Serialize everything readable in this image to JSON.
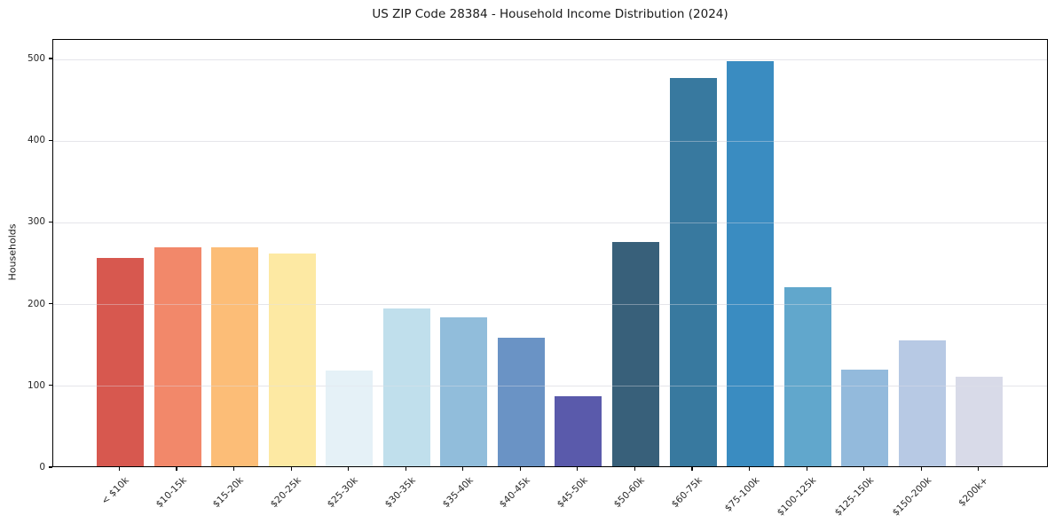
{
  "chart_data": {
    "type": "bar",
    "title": "US ZIP Code 28384 - Household Income Distribution (2024)",
    "xlabel": "",
    "ylabel": "Households",
    "categories": [
      "< $10k",
      "$10-15k",
      "$15-20k",
      "$20-25k",
      "$25-30k",
      "$30-35k",
      "$35-40k",
      "$40-45k",
      "$45-50k",
      "$50-60k",
      "$60-75k",
      "$75-100k",
      "$100-125k",
      "$125-150k",
      "$150-200k",
      "$200k+"
    ],
    "values": [
      255,
      268,
      268,
      260,
      117,
      193,
      182,
      157,
      86,
      274,
      475,
      496,
      219,
      118,
      154,
      110
    ],
    "bar_colors": [
      "#d7584f",
      "#f2886a",
      "#fcbd77",
      "#fde9a3",
      "#e5f1f7",
      "#c0dfec",
      "#91bddb",
      "#6a93c5",
      "#5a5aab",
      "#38607a",
      "#38799f",
      "#3a8cc1",
      "#61a7cc",
      "#93badc",
      "#b7c9e4",
      "#d8dae8"
    ],
    "yticks": [
      0,
      100,
      200,
      300,
      400,
      500
    ],
    "ylim": [
      0,
      523
    ],
    "grid": "horizontal",
    "legend": "none",
    "axis_color": "#000000",
    "gridline_color": "#e8e8ec"
  }
}
